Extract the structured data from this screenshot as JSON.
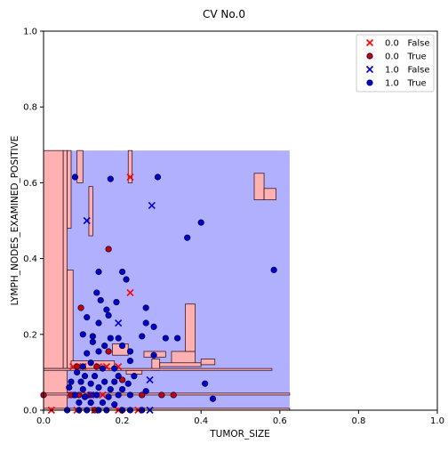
{
  "chart_data": {
    "type": "scatter",
    "title": "CV No.0",
    "xlabel": "TUMOR_SIZE",
    "ylabel": "LYMPH_NODES_EXAMINED_POSITIVE",
    "xlim": [
      0.0,
      1.0
    ],
    "ylim": [
      0.0,
      1.0
    ],
    "xticks": [
      "0.0",
      "0.2",
      "0.4",
      "0.6",
      "0.8",
      "1.0"
    ],
    "yticks": [
      "0.0",
      "0.2",
      "0.4",
      "0.6",
      "0.8",
      "1.0"
    ],
    "grid": false,
    "legend_position": "top-right",
    "decision_region": {
      "x_range": [
        0.0,
        0.625
      ],
      "y_range": [
        0.0,
        0.685
      ],
      "background_class": "1.0",
      "class_colors": {
        "0.0": "#ffb0b0",
        "1.0": "#b0b0ff"
      },
      "boundary_color": "#3a1a2a",
      "class_0_regions": [
        {
          "x": [
            0.0,
            0.05
          ],
          "y": [
            0.685,
            0.0
          ]
        },
        {
          "x": [
            0.0,
            0.06
          ],
          "y": [
            0.11,
            0.0
          ]
        },
        {
          "x": [
            0.05,
            0.06
          ],
          "y": [
            0.685,
            0.11
          ]
        },
        {
          "x": [
            0.06,
            0.07
          ],
          "y": [
            0.685,
            0.48
          ]
        },
        {
          "x": [
            0.06,
            0.075
          ],
          "y": [
            0.37,
            0.11
          ]
        },
        {
          "x": [
            0.085,
            0.1
          ],
          "y": [
            0.685,
            0.6
          ]
        },
        {
          "x": [
            0.115,
            0.125
          ],
          "y": [
            0.59,
            0.46
          ]
        },
        {
          "x": [
            0.07,
            0.18
          ],
          "y": [
            0.13,
            0.11
          ]
        },
        {
          "x": [
            0.175,
            0.215
          ],
          "y": [
            0.175,
            0.145
          ]
        },
        {
          "x": [
            0.21,
            0.25
          ],
          "y": [
            0.105,
            0.095
          ]
        },
        {
          "x": [
            0.215,
            0.225
          ],
          "y": [
            0.7,
            0.6
          ]
        },
        {
          "x": [
            0.255,
            0.31
          ],
          "y": [
            0.155,
            0.14
          ]
        },
        {
          "x": [
            0.275,
            0.295
          ],
          "y": [
            0.135,
            0.105
          ]
        },
        {
          "x": [
            0.325,
            0.385
          ],
          "y": [
            0.155,
            0.12
          ]
        },
        {
          "x": [
            0.36,
            0.385
          ],
          "y": [
            0.28,
            0.155
          ]
        },
        {
          "x": [
            0.295,
            0.4
          ],
          "y": [
            0.125,
            0.115
          ]
        },
        {
          "x": [
            0.4,
            0.435
          ],
          "y": [
            0.135,
            0.12
          ]
        },
        {
          "x": [
            0.535,
            0.56
          ],
          "y": [
            0.625,
            0.555
          ]
        },
        {
          "x": [
            0.56,
            0.59
          ],
          "y": [
            0.585,
            0.555
          ]
        },
        {
          "x": [
            0.0,
            0.58
          ],
          "y": [
            0.11,
            0.105
          ]
        },
        {
          "x": [
            0.0,
            0.625
          ],
          "y": [
            0.045,
            0.04
          ]
        },
        {
          "x": [
            0.0,
            0.625
          ],
          "y": [
            0.005,
            0.0
          ]
        }
      ]
    },
    "series": [
      {
        "name": "0.0   False",
        "marker": "x",
        "color": "#ff0000",
        "points": [
          [
            0.22,
            0.615
          ],
          [
            0.22,
            0.31
          ],
          [
            0.075,
            0.115
          ],
          [
            0.1,
            0.115
          ],
          [
            0.14,
            0.115
          ],
          [
            0.16,
            0.115
          ],
          [
            0.19,
            0.115
          ],
          [
            0.07,
            0.04
          ],
          [
            0.11,
            0.04
          ],
          [
            0.15,
            0.04
          ],
          [
            0.02,
            0.0
          ],
          [
            0.085,
            0.0
          ],
          [
            0.13,
            0.0
          ],
          [
            0.19,
            0.0
          ],
          [
            0.24,
            0.0
          ]
        ]
      },
      {
        "name": "0.0   True",
        "marker": "o",
        "color": "#cc0000",
        "points": [
          [
            0.165,
            0.425
          ],
          [
            0.095,
            0.27
          ],
          [
            0.085,
            0.115
          ],
          [
            0.135,
            0.115
          ],
          [
            0.165,
            0.155
          ],
          [
            0.2,
            0.08
          ],
          [
            0.07,
            0.04
          ],
          [
            0.09,
            0.04
          ],
          [
            0.12,
            0.04
          ],
          [
            0.25,
            0.04
          ],
          [
            0.3,
            0.04
          ],
          [
            0.33,
            0.04
          ],
          [
            0.0,
            0.04
          ],
          [
            0.13,
            0.0
          ]
        ]
      },
      {
        "name": "1.0   False",
        "marker": "x",
        "color": "#0000cc",
        "points": [
          [
            0.11,
            0.5
          ],
          [
            0.275,
            0.54
          ],
          [
            0.19,
            0.23
          ],
          [
            0.12,
            0.04
          ],
          [
            0.27,
            0.08
          ],
          [
            0.27,
            0.0
          ]
        ]
      },
      {
        "name": "1.0   True",
        "marker": "o",
        "color": "#0000cc",
        "points": [
          [
            0.08,
            0.615
          ],
          [
            0.17,
            0.61
          ],
          [
            0.29,
            0.615
          ],
          [
            0.4,
            0.495
          ],
          [
            0.365,
            0.455
          ],
          [
            0.585,
            0.37
          ],
          [
            0.2,
            0.365
          ],
          [
            0.14,
            0.365
          ],
          [
            0.21,
            0.345
          ],
          [
            0.135,
            0.31
          ],
          [
            0.145,
            0.29
          ],
          [
            0.185,
            0.285
          ],
          [
            0.11,
            0.245
          ],
          [
            0.165,
            0.25
          ],
          [
            0.26,
            0.27
          ],
          [
            0.16,
            0.265
          ],
          [
            0.14,
            0.23
          ],
          [
            0.26,
            0.23
          ],
          [
            0.28,
            0.22
          ],
          [
            0.1,
            0.2
          ],
          [
            0.125,
            0.195
          ],
          [
            0.17,
            0.19
          ],
          [
            0.19,
            0.19
          ],
          [
            0.25,
            0.195
          ],
          [
            0.31,
            0.19
          ],
          [
            0.34,
            0.19
          ],
          [
            0.125,
            0.18
          ],
          [
            0.155,
            0.17
          ],
          [
            0.2,
            0.17
          ],
          [
            0.11,
            0.15
          ],
          [
            0.14,
            0.155
          ],
          [
            0.22,
            0.155
          ],
          [
            0.28,
            0.145
          ],
          [
            0.22,
            0.13
          ],
          [
            0.1,
            0.115
          ],
          [
            0.12,
            0.125
          ],
          [
            0.15,
            0.11
          ],
          [
            0.18,
            0.11
          ],
          [
            0.085,
            0.1
          ],
          [
            0.105,
            0.09
          ],
          [
            0.13,
            0.09
          ],
          [
            0.19,
            0.09
          ],
          [
            0.23,
            0.09
          ],
          [
            0.07,
            0.075
          ],
          [
            0.095,
            0.075
          ],
          [
            0.12,
            0.07
          ],
          [
            0.155,
            0.075
          ],
          [
            0.18,
            0.075
          ],
          [
            0.215,
            0.07
          ],
          [
            0.065,
            0.06
          ],
          [
            0.1,
            0.055
          ],
          [
            0.14,
            0.06
          ],
          [
            0.17,
            0.055
          ],
          [
            0.2,
            0.055
          ],
          [
            0.26,
            0.05
          ],
          [
            0.08,
            0.04
          ],
          [
            0.105,
            0.035
          ],
          [
            0.135,
            0.04
          ],
          [
            0.165,
            0.035
          ],
          [
            0.19,
            0.04
          ],
          [
            0.22,
            0.04
          ],
          [
            0.41,
            0.07
          ],
          [
            0.09,
            0.02
          ],
          [
            0.12,
            0.02
          ],
          [
            0.15,
            0.02
          ],
          [
            0.18,
            0.015
          ],
          [
            0.06,
            0.0
          ],
          [
            0.09,
            0.0
          ],
          [
            0.11,
            0.0
          ],
          [
            0.14,
            0.0
          ],
          [
            0.16,
            0.0
          ],
          [
            0.2,
            0.0
          ],
          [
            0.22,
            0.0
          ],
          [
            0.25,
            0.0
          ],
          [
            0.43,
            0.03
          ]
        ]
      }
    ]
  }
}
